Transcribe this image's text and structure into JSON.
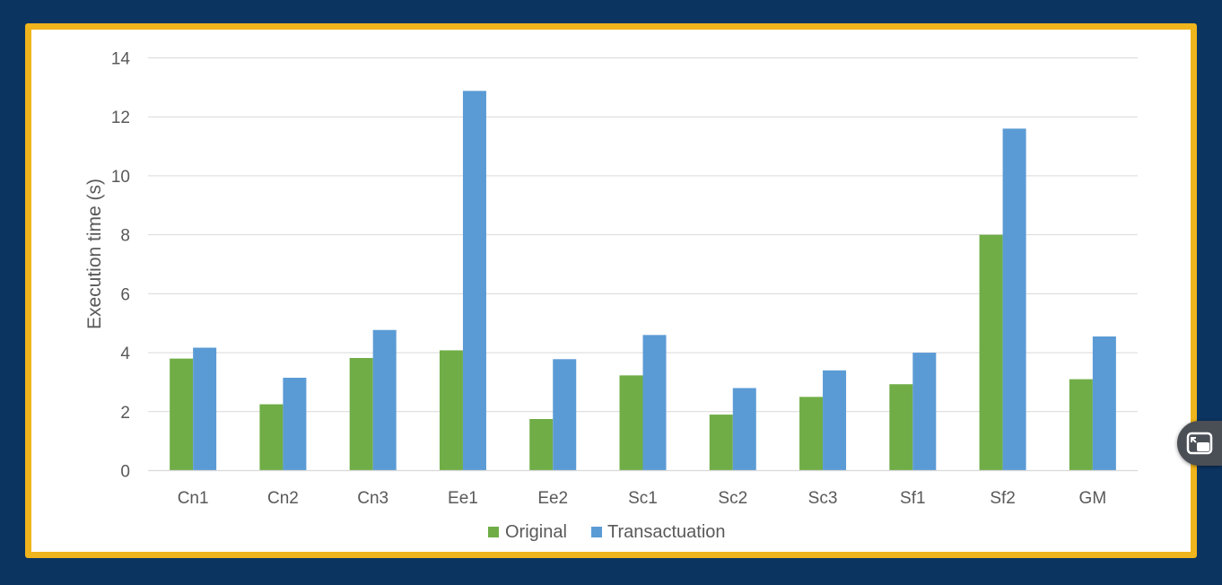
{
  "colors": {
    "background": "#0b3461",
    "frame_border": "#f0b41c",
    "original": "#70ad47",
    "transactuation": "#5b9bd5",
    "gridline": "#d9d9d9",
    "text": "#595959"
  },
  "icons": {
    "floating_button": "picture-in-picture-icon"
  },
  "chart_data": {
    "type": "bar",
    "title": "",
    "xlabel": "",
    "ylabel": "Execution time (s)",
    "ylim": [
      0,
      14
    ],
    "yticks": [
      0,
      2,
      4,
      6,
      8,
      10,
      12,
      14
    ],
    "grid": true,
    "legend_position": "bottom",
    "categories": [
      "Cn1",
      "Cn2",
      "Cn3",
      "Ee1",
      "Ee2",
      "Sc1",
      "Sc2",
      "Sc3",
      "Sf1",
      "Sf2",
      "GM"
    ],
    "series": [
      {
        "name": "Original",
        "color": "#70ad47",
        "values": [
          3.8,
          2.25,
          3.82,
          4.08,
          1.75,
          3.23,
          1.9,
          2.5,
          2.93,
          8.0,
          3.1
        ]
      },
      {
        "name": "Transactuation",
        "color": "#5b9bd5",
        "values": [
          4.17,
          3.15,
          4.77,
          12.88,
          3.78,
          4.6,
          2.8,
          3.4,
          4.0,
          11.6,
          4.55
        ]
      }
    ]
  }
}
